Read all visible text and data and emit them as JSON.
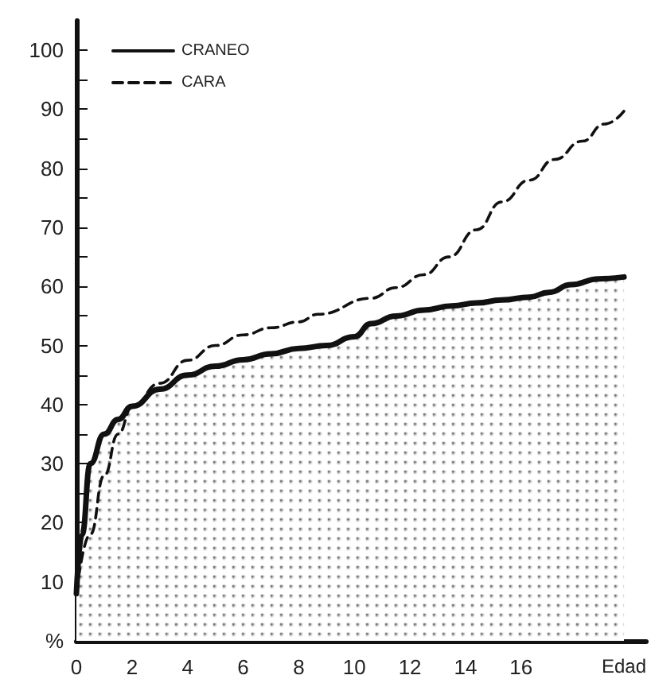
{
  "chart_data": {
    "type": "line",
    "xlabel": "Edad",
    "legend": "top left",
    "grid": false,
    "marker": "none",
    "xlim": [
      0,
      20.5
    ],
    "ylim": [
      0,
      105
    ],
    "xticks": [
      0,
      {
        "value": 1,
        "label": null
      },
      2,
      {
        "value": 3,
        "label": null
      },
      4,
      {
        "value": 5,
        "label": null
      },
      6,
      {
        "value": 7,
        "label": null
      },
      8,
      {
        "value": 9,
        "label": null
      },
      10,
      {
        "value": 11,
        "label": null
      },
      12,
      {
        "value": 13,
        "label": null
      },
      14,
      {
        "value": 15,
        "label": null
      },
      16,
      {
        "value": 17,
        "label": null
      }
    ],
    "yticks": [
      {
        "value": 0,
        "label": "%"
      },
      {
        "value": 5,
        "label": null
      },
      10,
      {
        "value": 15,
        "label": null
      },
      20,
      {
        "value": 25,
        "label": null
      },
      30,
      {
        "value": 35,
        "label": null
      },
      40,
      {
        "value": 45,
        "label": null
      },
      50,
      {
        "value": 55,
        "label": null
      },
      60,
      {
        "value": 65,
        "label": null
      },
      70,
      {
        "value": 75,
        "label": null
      },
      80,
      {
        "value": 85,
        "label": null
      },
      90,
      {
        "value": 95,
        "label": null
      },
      100
    ],
    "series": [
      {
        "name": "CRANEO",
        "type": "area",
        "color": "#111111",
        "line_style": "solid",
        "x": [
          0,
          0.2,
          0.5,
          1,
          1.5,
          2,
          3,
          4,
          5,
          6,
          7,
          8,
          9,
          10,
          10.6,
          11.5,
          12.5,
          13.5,
          14.4,
          15.3,
          16.3,
          17,
          17.8,
          18.8,
          19.7
        ],
        "values": [
          8,
          18,
          30,
          35,
          37.5,
          39.7,
          42.6,
          45,
          46.5,
          47.6,
          48.6,
          49.5,
          50,
          51.5,
          53.7,
          55,
          56,
          56.7,
          57.2,
          57.7,
          58.2,
          59,
          60.3,
          61.3,
          61.6
        ]
      },
      {
        "name": "CARA",
        "color": "#111111",
        "line_style": "dashed",
        "x": [
          0,
          0.5,
          1,
          1.5,
          2,
          3,
          4,
          5,
          6,
          7,
          8,
          8.7,
          10.6,
          11.5,
          12.5,
          13.4,
          14.4,
          15.3,
          16.3,
          17.2,
          18.2,
          19,
          19.7
        ],
        "values": [
          8,
          18,
          28,
          35,
          39.5,
          43.6,
          47.5,
          50,
          51.8,
          53,
          54,
          55.3,
          58,
          59.8,
          62,
          65,
          69.6,
          74.3,
          78,
          81.5,
          84.6,
          87.5,
          89.7
        ]
      }
    ]
  }
}
